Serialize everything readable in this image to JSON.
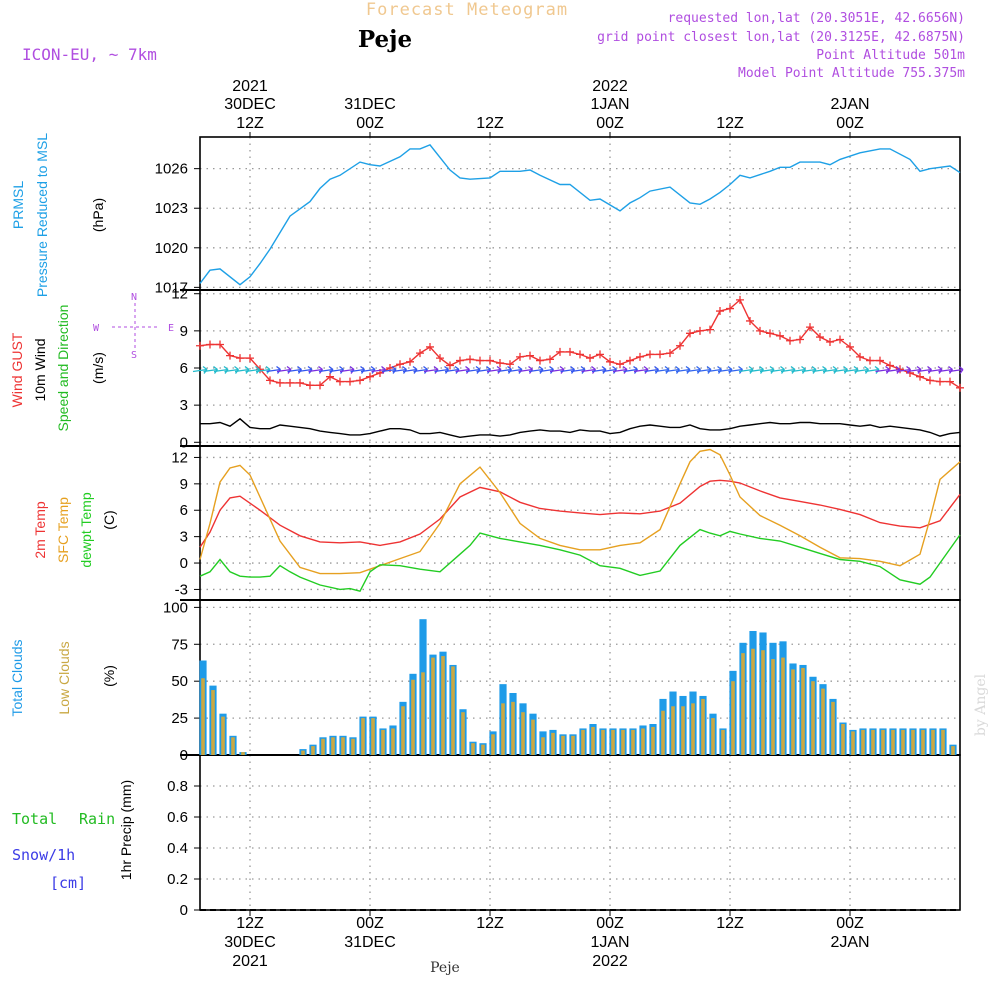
{
  "header": {
    "product": "Forecast Meteogram",
    "model": "ICON-EU, ~ 7km",
    "location": "Peje",
    "requested": "requested lon,lat (20.3051E, 42.6656N)",
    "grid_point": "grid point closest lon,lat (20.3125E, 42.6875N)",
    "point_altitude": "Point Altitude 501m",
    "model_altitude": "Model Point Altitude 755.375m",
    "watermark": "by Angel",
    "footer_label": "Peje"
  },
  "time_axis": {
    "top_labels": [
      {
        "l1": "2021",
        "l2": "30DEC",
        "l3": "12Z"
      },
      {
        "l1": "",
        "l2": "31DEC",
        "l3": "00Z"
      },
      {
        "l1": "",
        "l2": "",
        "l3": "12Z"
      },
      {
        "l1": "2022",
        "l2": "1JAN",
        "l3": "00Z"
      },
      {
        "l1": "",
        "l2": "",
        "l3": "12Z"
      },
      {
        "l1": "",
        "l2": "2JAN",
        "l3": "00Z"
      }
    ],
    "bottom_labels": [
      {
        "l1": "12Z",
        "l2": "30DEC",
        "l3": "2021"
      },
      {
        "l1": "00Z",
        "l2": "31DEC",
        "l3": ""
      },
      {
        "l1": "12Z",
        "l2": "",
        "l3": ""
      },
      {
        "l1": "00Z",
        "l2": "1JAN",
        "l3": "2022"
      },
      {
        "l1": "12Z",
        "l2": "",
        "l3": ""
      },
      {
        "l1": "00Z",
        "l2": "2JAN",
        "l3": ""
      }
    ],
    "tick_hours": [
      9,
      21,
      33,
      45,
      57,
      69
    ],
    "span_hours": [
      4,
      80
    ]
  },
  "panel_labels": {
    "pressure": {
      "title1": "PRMSL",
      "title2": "Pressure Reduced to MSL",
      "unit": "(hPa)"
    },
    "wind": {
      "gust": "Wind GUST",
      "wind10": "10m Wind",
      "dir": "Speed and Direction",
      "unit": "(m/s)",
      "compass_w": "W",
      "compass_e": "E",
      "compass_n": "N",
      "compass_s": "S"
    },
    "temp": {
      "t2m": "2m Temp",
      "sfc": "SFC Temp",
      "dewpt": "dewpt Temp",
      "unit": "(C)"
    },
    "cloud": {
      "total": "Total Clouds",
      "low": "Low Clouds",
      "unit": "(%)"
    },
    "precip": {
      "total": "Total",
      "rain": "Rain",
      "snow": "Snow/1h",
      "cm": "[cm]",
      "axis": "1hr Precip (mm)"
    }
  },
  "colors": {
    "pressure": "#1ea0e6",
    "gust": "#ee3333",
    "wind10": "#000000",
    "t2m": "#ee3333",
    "sfc": "#e6a020",
    "dewpt": "#22cc22",
    "total_cloud": "#1e9be8",
    "low_cloud": "#c9a844",
    "purple": "#b04ee0",
    "green_label": "#22bb22",
    "snow": "#3b3be6",
    "header_orange": "#f0c890"
  },
  "chart_data": [
    {
      "type": "line",
      "name": "pressure",
      "ylabel": "(hPa)",
      "yticks": [
        1017,
        1020,
        1023,
        1026
      ],
      "ylim": [
        1016.8,
        1028.4
      ],
      "series": [
        {
          "name": "PRMSL",
          "x": [
            4,
            5,
            6,
            8,
            9,
            10,
            11,
            13,
            15,
            16,
            17,
            18,
            20,
            21,
            22,
            24,
            25,
            26,
            27,
            29,
            30,
            31,
            33,
            34,
            36,
            37,
            38,
            40,
            41,
            43,
            44,
            46,
            47,
            48,
            49,
            51,
            53,
            54,
            55,
            56,
            57,
            58,
            59,
            61,
            62,
            63,
            64,
            66,
            67,
            68,
            70,
            72,
            73,
            75,
            76,
            77,
            79,
            80
          ],
          "y": [
            1017.3,
            1018.3,
            1018.4,
            1017.2,
            1017.8,
            1018.8,
            1019.9,
            1022.4,
            1023.5,
            1024.5,
            1025.2,
            1025.5,
            1026.5,
            1026.3,
            1026.2,
            1026.9,
            1027.5,
            1027.5,
            1027.8,
            1025.9,
            1025.3,
            1025.2,
            1025.3,
            1025.8,
            1025.8,
            1025.9,
            1025.5,
            1024.8,
            1024.8,
            1023.6,
            1023.7,
            1022.8,
            1023.4,
            1023.8,
            1024.3,
            1024.6,
            1023.4,
            1023.3,
            1023.7,
            1024.2,
            1024.8,
            1025.5,
            1025.3,
            1025.8,
            1026.1,
            1026.1,
            1026.5,
            1026.5,
            1026.3,
            1026.7,
            1027.2,
            1027.5,
            1027.5,
            1026.7,
            1025.8,
            1026,
            1026.2,
            1025.7
          ]
        }
      ]
    },
    {
      "type": "line",
      "name": "wind",
      "ylabel": "(m/s)",
      "yticks": [
        0,
        3,
        6,
        9,
        12
      ],
      "ylim": [
        -0.3,
        12.3
      ],
      "series": [
        {
          "name": "Wind GUST",
          "x": [
            4,
            5,
            6,
            7,
            8,
            9,
            10,
            11,
            12,
            13,
            14,
            15,
            16,
            17,
            18,
            19,
            20,
            21,
            22,
            23,
            24,
            25,
            26,
            27,
            28,
            29,
            30,
            31,
            32,
            33,
            34,
            35,
            36,
            37,
            38,
            39,
            40,
            41,
            42,
            43,
            44,
            45,
            46,
            47,
            48,
            49,
            50,
            51,
            52,
            53,
            54,
            55,
            56,
            57,
            58,
            59,
            60,
            61,
            62,
            63,
            64,
            65,
            66,
            67,
            68,
            69,
            70,
            71,
            72,
            73,
            74,
            75,
            76,
            77,
            78,
            79,
            80
          ],
          "y": [
            7.8,
            7.9,
            7.9,
            7,
            6.8,
            6.8,
            5.9,
            5,
            4.8,
            4.8,
            4.8,
            4.6,
            4.6,
            5.3,
            4.9,
            4.9,
            5,
            5.3,
            5.6,
            6,
            6.3,
            6.5,
            7.2,
            7.7,
            6.8,
            6.2,
            6.6,
            6.7,
            6.6,
            6.6,
            6.4,
            6.3,
            6.9,
            7,
            6.6,
            6.7,
            7.3,
            7.3,
            7.1,
            6.8,
            7.1,
            6.5,
            6.3,
            6.6,
            6.9,
            7.1,
            7.1,
            7.2,
            7.8,
            8.8,
            9,
            9.1,
            10.6,
            10.8,
            11.5,
            9.8,
            9,
            8.8,
            8.6,
            8.2,
            8.3,
            9.3,
            8.5,
            8.1,
            8.3,
            7.7,
            6.9,
            6.6,
            6.6,
            6.2,
            5.9,
            5.6,
            5.3,
            5,
            4.9,
            4.9,
            4.4
          ]
        },
        {
          "name": "10m Wind",
          "x": [
            4,
            5,
            6,
            7,
            8,
            9,
            10,
            11,
            12,
            13,
            14,
            15,
            16,
            17,
            18,
            19,
            20,
            21,
            22,
            23,
            24,
            25,
            26,
            27,
            28,
            29,
            30,
            31,
            32,
            33,
            34,
            35,
            36,
            37,
            38,
            39,
            40,
            41,
            42,
            43,
            44,
            45,
            46,
            47,
            48,
            49,
            50,
            51,
            52,
            53,
            54,
            55,
            56,
            57,
            58,
            59,
            60,
            61,
            62,
            63,
            64,
            65,
            66,
            67,
            68,
            69,
            70,
            71,
            72,
            73,
            74,
            75,
            76,
            77,
            78,
            79,
            80
          ],
          "y": [
            1.5,
            1.5,
            1.6,
            1.3,
            1.9,
            1.2,
            1.1,
            1.1,
            1.4,
            1.3,
            1.2,
            1.1,
            0.9,
            0.8,
            0.7,
            0.6,
            0.6,
            0.7,
            0.9,
            1.1,
            1.1,
            1,
            0.7,
            0.7,
            0.8,
            0.6,
            0.4,
            0.5,
            0.6,
            0.6,
            0.5,
            0.6,
            0.8,
            0.9,
            1,
            0.9,
            0.9,
            0.8,
            1,
            0.9,
            0.9,
            0.7,
            0.8,
            1.1,
            1.3,
            1.4,
            1.3,
            1.2,
            1.2,
            1.4,
            1.1,
            1,
            1,
            1.1,
            1.3,
            1.4,
            1.5,
            1.6,
            1.5,
            1.5,
            1.6,
            1.6,
            1.5,
            1.5,
            1.5,
            1.4,
            1.3,
            1.4,
            1.2,
            1.3,
            1.2,
            1.1,
            1,
            0.8,
            0.5,
            0.7,
            0.8
          ]
        }
      ]
    },
    {
      "type": "line",
      "name": "temperature",
      "ylabel": "(C)",
      "yticks": [
        -3,
        0,
        3,
        6,
        9,
        12
      ],
      "ylim": [
        -4.2,
        13.3
      ],
      "series": [
        {
          "name": "2m Temp",
          "x": [
            4,
            5,
            6,
            7,
            8,
            9,
            10,
            12,
            14,
            16,
            18,
            20,
            22,
            24,
            26,
            28,
            30,
            32,
            34,
            36,
            38,
            40,
            42,
            44,
            46,
            48,
            50,
            52,
            54,
            55,
            56,
            57,
            58,
            60,
            62,
            64,
            66,
            68,
            70,
            72,
            74,
            76,
            78,
            80
          ],
          "y": [
            1.8,
            3.5,
            6,
            7.4,
            7.6,
            6.8,
            6,
            4.3,
            3.1,
            2.4,
            2.3,
            2.4,
            2.0,
            2.4,
            3.3,
            5,
            7.5,
            8.6,
            8.1,
            6.9,
            6.2,
            5.9,
            5.7,
            5.5,
            5.7,
            5.6,
            5.9,
            6.8,
            8.7,
            9.3,
            9.4,
            9.3,
            9.1,
            8.2,
            7.4,
            7,
            6.6,
            6.1,
            5.5,
            4.6,
            4.2,
            4,
            4.8,
            7.8
          ]
        },
        {
          "name": "SFC Temp",
          "x": [
            4,
            5,
            6,
            7,
            8,
            9,
            10,
            12,
            14,
            16,
            18,
            20,
            22,
            24,
            26,
            28,
            30,
            32,
            34,
            36,
            38,
            40,
            42,
            44,
            46,
            48,
            50,
            52,
            53,
            54,
            55,
            56,
            57,
            58,
            60,
            62,
            64,
            66,
            68,
            70,
            72,
            74,
            76,
            77,
            78,
            80
          ],
          "y": [
            0.4,
            4.5,
            9.2,
            10.8,
            11.1,
            10,
            7.5,
            2.5,
            -0.5,
            -1.2,
            -1.2,
            -1.1,
            -0.3,
            0.5,
            1.3,
            4.5,
            9,
            10.9,
            8,
            4.5,
            2.8,
            2,
            1.5,
            1.5,
            2,
            2.3,
            3.8,
            9,
            11.5,
            12.7,
            12.9,
            12.3,
            10,
            7.5,
            5.4,
            4.3,
            3.1,
            1.8,
            0.6,
            0.5,
            0.2,
            -0.3,
            1,
            5,
            9.5,
            11.5
          ]
        },
        {
          "name": "dewpt Temp",
          "x": [
            4,
            5,
            6,
            7,
            8,
            9,
            10,
            11,
            12,
            13,
            14,
            16,
            18,
            19,
            20,
            21,
            22,
            24,
            26,
            28,
            30,
            31,
            32,
            34,
            36,
            38,
            40,
            42,
            44,
            46,
            48,
            50,
            52,
            54,
            55,
            56,
            57,
            58,
            60,
            62,
            64,
            66,
            68,
            70,
            72,
            74,
            76,
            77,
            78,
            80
          ],
          "y": [
            -1.5,
            -1,
            0.4,
            -1,
            -1.5,
            -1.6,
            -1.6,
            -1.5,
            -0.3,
            -1,
            -1.6,
            -2.5,
            -3,
            -2.9,
            -3.2,
            -1,
            -0.2,
            -0.3,
            -0.7,
            -1,
            1,
            2,
            3.4,
            2.8,
            2.4,
            2,
            1.5,
            0.9,
            -0.3,
            -0.6,
            -1.4,
            -0.9,
            2,
            3.8,
            3.4,
            3.1,
            3.6,
            3.3,
            2.8,
            2.5,
            1.8,
            1.1,
            0.4,
            0.2,
            -0.4,
            -1.9,
            -2.4,
            -1.6,
            0,
            3.2
          ]
        }
      ]
    },
    {
      "type": "bar",
      "name": "clouds",
      "ylabel": "(%)",
      "yticks": [
        0,
        25,
        50,
        75,
        100
      ],
      "ylim": [
        0,
        105
      ],
      "x": [
        4,
        5,
        6,
        7,
        8,
        9,
        10,
        11,
        12,
        13,
        14,
        15,
        16,
        17,
        18,
        19,
        20,
        21,
        22,
        23,
        24,
        25,
        26,
        27,
        28,
        29,
        30,
        31,
        32,
        33,
        34,
        35,
        36,
        37,
        38,
        39,
        40,
        41,
        42,
        43,
        44,
        45,
        46,
        47,
        48,
        49,
        50,
        51,
        52,
        53,
        54,
        55,
        56,
        57,
        58,
        59,
        60,
        61,
        62,
        63,
        64,
        65,
        66,
        67,
        68,
        69,
        70,
        71,
        72,
        73,
        74,
        75,
        76,
        77,
        78,
        79,
        80
      ],
      "series": [
        {
          "name": "Total Clouds",
          "values": [
            64,
            47,
            28,
            13,
            2,
            0,
            0,
            0,
            0,
            0,
            4,
            7,
            12,
            13,
            13,
            12,
            26,
            26,
            18,
            20,
            36,
            55,
            92,
            68,
            70,
            61,
            31,
            9,
            8,
            16,
            48,
            42,
            35,
            28,
            16,
            17,
            14,
            14,
            18,
            21,
            18,
            18,
            18,
            18,
            20,
            21,
            38,
            43,
            40,
            43,
            40,
            28,
            18,
            57,
            76,
            84,
            83,
            76,
            77,
            62,
            61,
            53,
            48,
            38,
            22,
            17,
            18,
            18,
            18,
            18,
            18,
            18,
            18,
            18,
            18,
            7,
            0
          ],
          "note": "last bars"
        },
        {
          "name": "Low Clouds",
          "values": [
            52,
            44,
            26,
            12,
            2,
            0,
            0,
            0,
            0,
            0,
            3,
            6,
            11,
            12,
            12,
            11,
            25,
            25,
            17,
            18,
            33,
            51,
            56,
            66,
            67,
            60,
            29,
            8,
            7,
            14,
            35,
            36,
            29,
            24,
            12,
            15,
            13,
            13,
            17,
            19,
            17,
            17,
            17,
            17,
            18,
            19,
            30,
            33,
            33,
            35,
            38,
            25,
            17,
            50,
            69,
            72,
            71,
            65,
            66,
            58,
            59,
            50,
            45,
            36,
            21,
            16,
            17,
            17,
            17,
            17,
            17,
            17,
            17,
            17,
            17,
            6,
            0
          ]
        }
      ]
    },
    {
      "type": "bar",
      "name": "precipitation",
      "ylabel": "1hr Precip (mm)",
      "yticks": [
        0,
        0.2,
        0.4,
        0.6,
        0.8
      ],
      "ylim": [
        0,
        1
      ],
      "series": [
        {
          "name": "Total Rain",
          "values": []
        },
        {
          "name": "Snow/1h",
          "values": []
        }
      ]
    }
  ]
}
